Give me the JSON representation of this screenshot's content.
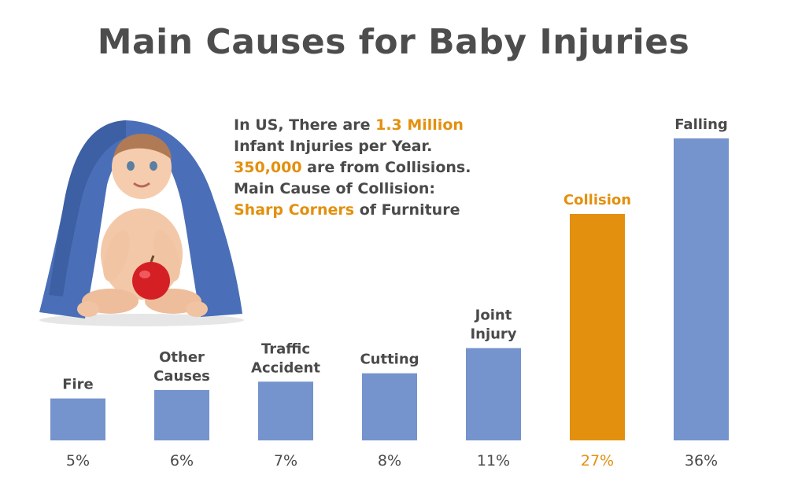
{
  "title": "Main Causes for Baby Injuries",
  "stats": {
    "line1_pre": "In US, There are ",
    "line1_hl": "1.3 Million",
    "line2": "Infant Injuries per Year.",
    "line3_hl": "350,000",
    "line3_post": " are from Collisions.",
    "line4": "Main Cause of Collision:",
    "line5_hl": "Sharp Corners",
    "line5_post": " of Furniture"
  },
  "colors": {
    "bar": "#7593cc",
    "highlight": "#e3900e",
    "text": "#4a4a4a"
  },
  "chart_data": {
    "type": "bar",
    "title": "Main Causes for Baby Injuries",
    "categories": [
      "Fire",
      "Other Causes",
      "Traffic Accident",
      "Cutting",
      "Joint Injury",
      "Collision",
      "Falling"
    ],
    "category_lines": [
      [
        "Fire"
      ],
      [
        "Other",
        "Causes"
      ],
      [
        "Traffic",
        "Accident"
      ],
      [
        "Cutting"
      ],
      [
        "Joint",
        "Injury"
      ],
      [
        "Collision"
      ],
      [
        "Falling"
      ]
    ],
    "values": [
      5,
      6,
      7,
      8,
      11,
      27,
      36
    ],
    "value_labels": [
      "5%",
      "6%",
      "7%",
      "8%",
      "11%",
      "27%",
      "36%"
    ],
    "highlight_index": 5,
    "xlabel": "",
    "ylabel": "",
    "ylim": [
      0,
      36
    ],
    "grid": false,
    "legend": "none"
  }
}
